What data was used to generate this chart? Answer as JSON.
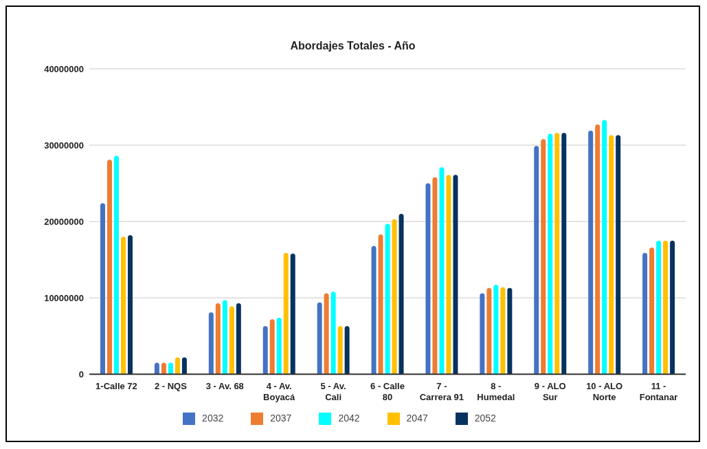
{
  "chart_data": {
    "type": "bar",
    "title": "Abordajes Totales - Año",
    "categories": [
      "1-Calle 72",
      "2 - NQS",
      "3 - Av. 68",
      "4 - Av. Boyacá",
      "5 - Av. Cali",
      "6 - Calle 80",
      "7 - Carrera 91",
      "8 - Humedal",
      "9 - ALO Sur",
      "10 - ALO Norte",
      "11 - Fontanar"
    ],
    "series": [
      {
        "name": "2032",
        "color": "#4472c4",
        "values": [
          22400000,
          1500000,
          8100000,
          6300000,
          9400000,
          16800000,
          25000000,
          10600000,
          29900000,
          31900000,
          15900000
        ]
      },
      {
        "name": "2037",
        "color": "#ed7d31",
        "values": [
          28100000,
          1500000,
          9300000,
          7200000,
          10600000,
          18300000,
          25800000,
          11300000,
          30800000,
          32700000,
          16600000
        ]
      },
      {
        "name": "2042",
        "color": "#00ffff",
        "values": [
          28600000,
          1500000,
          9700000,
          7400000,
          10800000,
          19700000,
          27100000,
          11700000,
          31500000,
          33300000,
          17500000
        ]
      },
      {
        "name": "2047",
        "color": "#ffc000",
        "values": [
          18000000,
          2200000,
          8900000,
          15900000,
          6300000,
          20300000,
          26100000,
          11400000,
          31600000,
          31300000,
          17500000
        ]
      },
      {
        "name": "2052",
        "color": "#08325e",
        "values": [
          18200000,
          2200000,
          9300000,
          15800000,
          6300000,
          21000000,
          26100000,
          11300000,
          31600000,
          31300000,
          17500000
        ]
      }
    ],
    "ylim": [
      0,
      40000000
    ],
    "yticks": [
      0,
      10000000,
      20000000,
      30000000,
      40000000
    ],
    "grid": "y",
    "legend": "bottom"
  }
}
